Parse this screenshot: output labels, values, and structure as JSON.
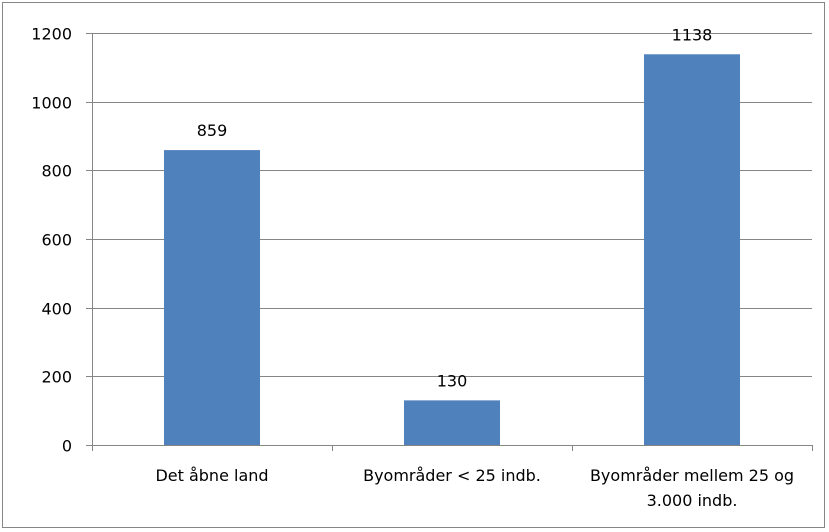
{
  "chart_data": {
    "type": "bar",
    "categories": [
      [
        "Det åbne land"
      ],
      [
        "Byområder < 25 indb."
      ],
      [
        "Byområder mellem 25 og",
        "3.000 indb."
      ]
    ],
    "values": [
      859,
      130,
      1138
    ],
    "ylim": [
      0,
      1200
    ],
    "yticks": [
      0,
      200,
      400,
      600,
      800,
      1000,
      1200
    ],
    "grid": true,
    "legend": "none",
    "colors": {
      "bar": "#4f81bd",
      "grid": "#868686",
      "axis": "#868686"
    }
  }
}
